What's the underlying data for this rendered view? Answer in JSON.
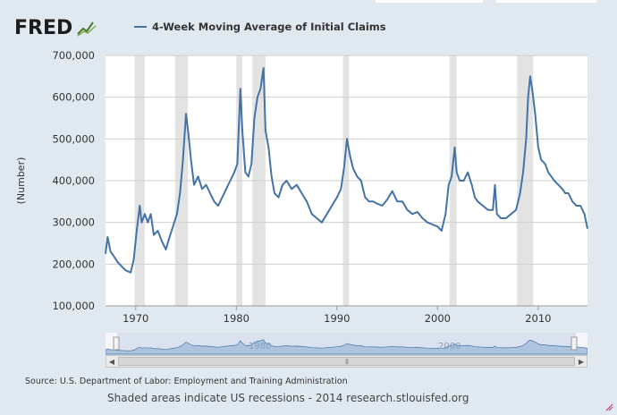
{
  "logo": {
    "text": "FRED",
    "icon": "fred-graph-icon"
  },
  "legend": {
    "series_name": "4-Week Moving Average of Initial Claims",
    "color": "#4572a7"
  },
  "source_text": "Source: U.S. Department of Labor: Employment and Training Administration",
  "recession_note": "Shaded areas indicate US recessions - 2014 research.stlouisfed.org",
  "navigator": {
    "tick_labels": [
      "1980",
      "2000"
    ],
    "scroll_left_icon": "arrow-left-icon",
    "scroll_right_icon": "arrow-right-icon"
  },
  "colors": {
    "series": "#4572a7",
    "recession": "#e3e3e3",
    "background": "#e1e9f0",
    "navigator_fill": "#aec4de"
  },
  "chart_data": {
    "type": "line",
    "title": "",
    "xlabel": "",
    "ylabel": "(Number)",
    "xlim": [
      1967.0,
      2014.9
    ],
    "ylim": [
      100000,
      700000
    ],
    "yticks": [
      100000,
      200000,
      300000,
      400000,
      500000,
      600000,
      700000
    ],
    "ytick_labels": [
      "100,000",
      "200,000",
      "300,000",
      "400,000",
      "500,000",
      "600,000",
      "700,000"
    ],
    "xticks": [
      1970,
      1980,
      1990,
      2000,
      2010
    ],
    "xtick_labels": [
      "1970",
      "1980",
      "1990",
      "2000",
      "2010"
    ],
    "grid": true,
    "legend_position": "top",
    "recessions": [
      [
        1969.9,
        1970.9
      ],
      [
        1973.9,
        1975.2
      ],
      [
        1980.0,
        1980.6
      ],
      [
        1981.6,
        1982.9
      ],
      [
        1990.6,
        1991.2
      ],
      [
        2001.2,
        2001.9
      ],
      [
        2007.9,
        2009.5
      ]
    ],
    "series": [
      {
        "name": "4-Week Moving Average of Initial Claims",
        "x": [
          1967.0,
          1967.2,
          1967.5,
          1967.8,
          1968.2,
          1968.6,
          1969.0,
          1969.5,
          1969.8,
          1970.1,
          1970.4,
          1970.6,
          1970.9,
          1971.2,
          1971.5,
          1971.8,
          1972.2,
          1972.6,
          1973.0,
          1973.3,
          1973.7,
          1974.1,
          1974.4,
          1974.7,
          1975.0,
          1975.2,
          1975.5,
          1975.8,
          1976.2,
          1976.6,
          1977.0,
          1977.4,
          1977.8,
          1978.2,
          1978.6,
          1979.0,
          1979.4,
          1979.8,
          1980.1,
          1980.4,
          1980.6,
          1980.9,
          1981.2,
          1981.5,
          1981.8,
          1982.1,
          1982.4,
          1982.7,
          1982.9,
          1983.2,
          1983.5,
          1983.8,
          1984.2,
          1984.6,
          1985.0,
          1985.5,
          1986.0,
          1986.5,
          1987.0,
          1987.5,
          1988.0,
          1988.5,
          1989.0,
          1989.5,
          1990.0,
          1990.4,
          1990.7,
          1991.0,
          1991.3,
          1991.6,
          1992.0,
          1992.4,
          1992.8,
          1993.2,
          1993.6,
          1994.0,
          1994.5,
          1995.0,
          1995.5,
          1996.0,
          1996.5,
          1997.0,
          1997.5,
          1998.0,
          1998.5,
          1999.0,
          1999.5,
          2000.0,
          2000.4,
          2000.8,
          2001.1,
          2001.4,
          2001.7,
          2001.9,
          2002.2,
          2002.6,
          2003.0,
          2003.4,
          2003.7,
          2004.0,
          2004.5,
          2005.0,
          2005.5,
          2005.7,
          2005.9,
          2006.3,
          2006.8,
          2007.3,
          2007.8,
          2008.2,
          2008.5,
          2008.8,
          2009.0,
          2009.2,
          2009.4,
          2009.7,
          2010.0,
          2010.3,
          2010.7,
          2011.0,
          2011.3,
          2011.6,
          2012.0,
          2012.4,
          2012.7,
          2013.0,
          2013.4,
          2013.8,
          2014.2,
          2014.6,
          2014.9
        ],
        "values": [
          225000,
          265000,
          230000,
          220000,
          205000,
          195000,
          185000,
          180000,
          210000,
          280000,
          340000,
          300000,
          320000,
          300000,
          320000,
          270000,
          280000,
          255000,
          235000,
          260000,
          290000,
          320000,
          370000,
          450000,
          560000,
          520000,
          450000,
          390000,
          410000,
          380000,
          390000,
          370000,
          350000,
          340000,
          360000,
          380000,
          400000,
          420000,
          440000,
          620000,
          520000,
          420000,
          410000,
          440000,
          550000,
          600000,
          620000,
          670000,
          520000,
          480000,
          410000,
          370000,
          360000,
          390000,
          400000,
          380000,
          390000,
          370000,
          350000,
          320000,
          310000,
          300000,
          320000,
          340000,
          360000,
          380000,
          430000,
          500000,
          460000,
          430000,
          410000,
          400000,
          360000,
          350000,
          350000,
          345000,
          340000,
          355000,
          375000,
          350000,
          350000,
          330000,
          320000,
          325000,
          310000,
          300000,
          295000,
          290000,
          280000,
          320000,
          390000,
          410000,
          480000,
          420000,
          400000,
          400000,
          420000,
          390000,
          360000,
          350000,
          340000,
          330000,
          330000,
          390000,
          320000,
          310000,
          310000,
          320000,
          330000,
          370000,
          420000,
          500000,
          600000,
          650000,
          620000,
          560000,
          480000,
          450000,
          440000,
          420000,
          410000,
          400000,
          390000,
          380000,
          370000,
          370000,
          350000,
          340000,
          340000,
          320000,
          285000
        ]
      }
    ]
  }
}
